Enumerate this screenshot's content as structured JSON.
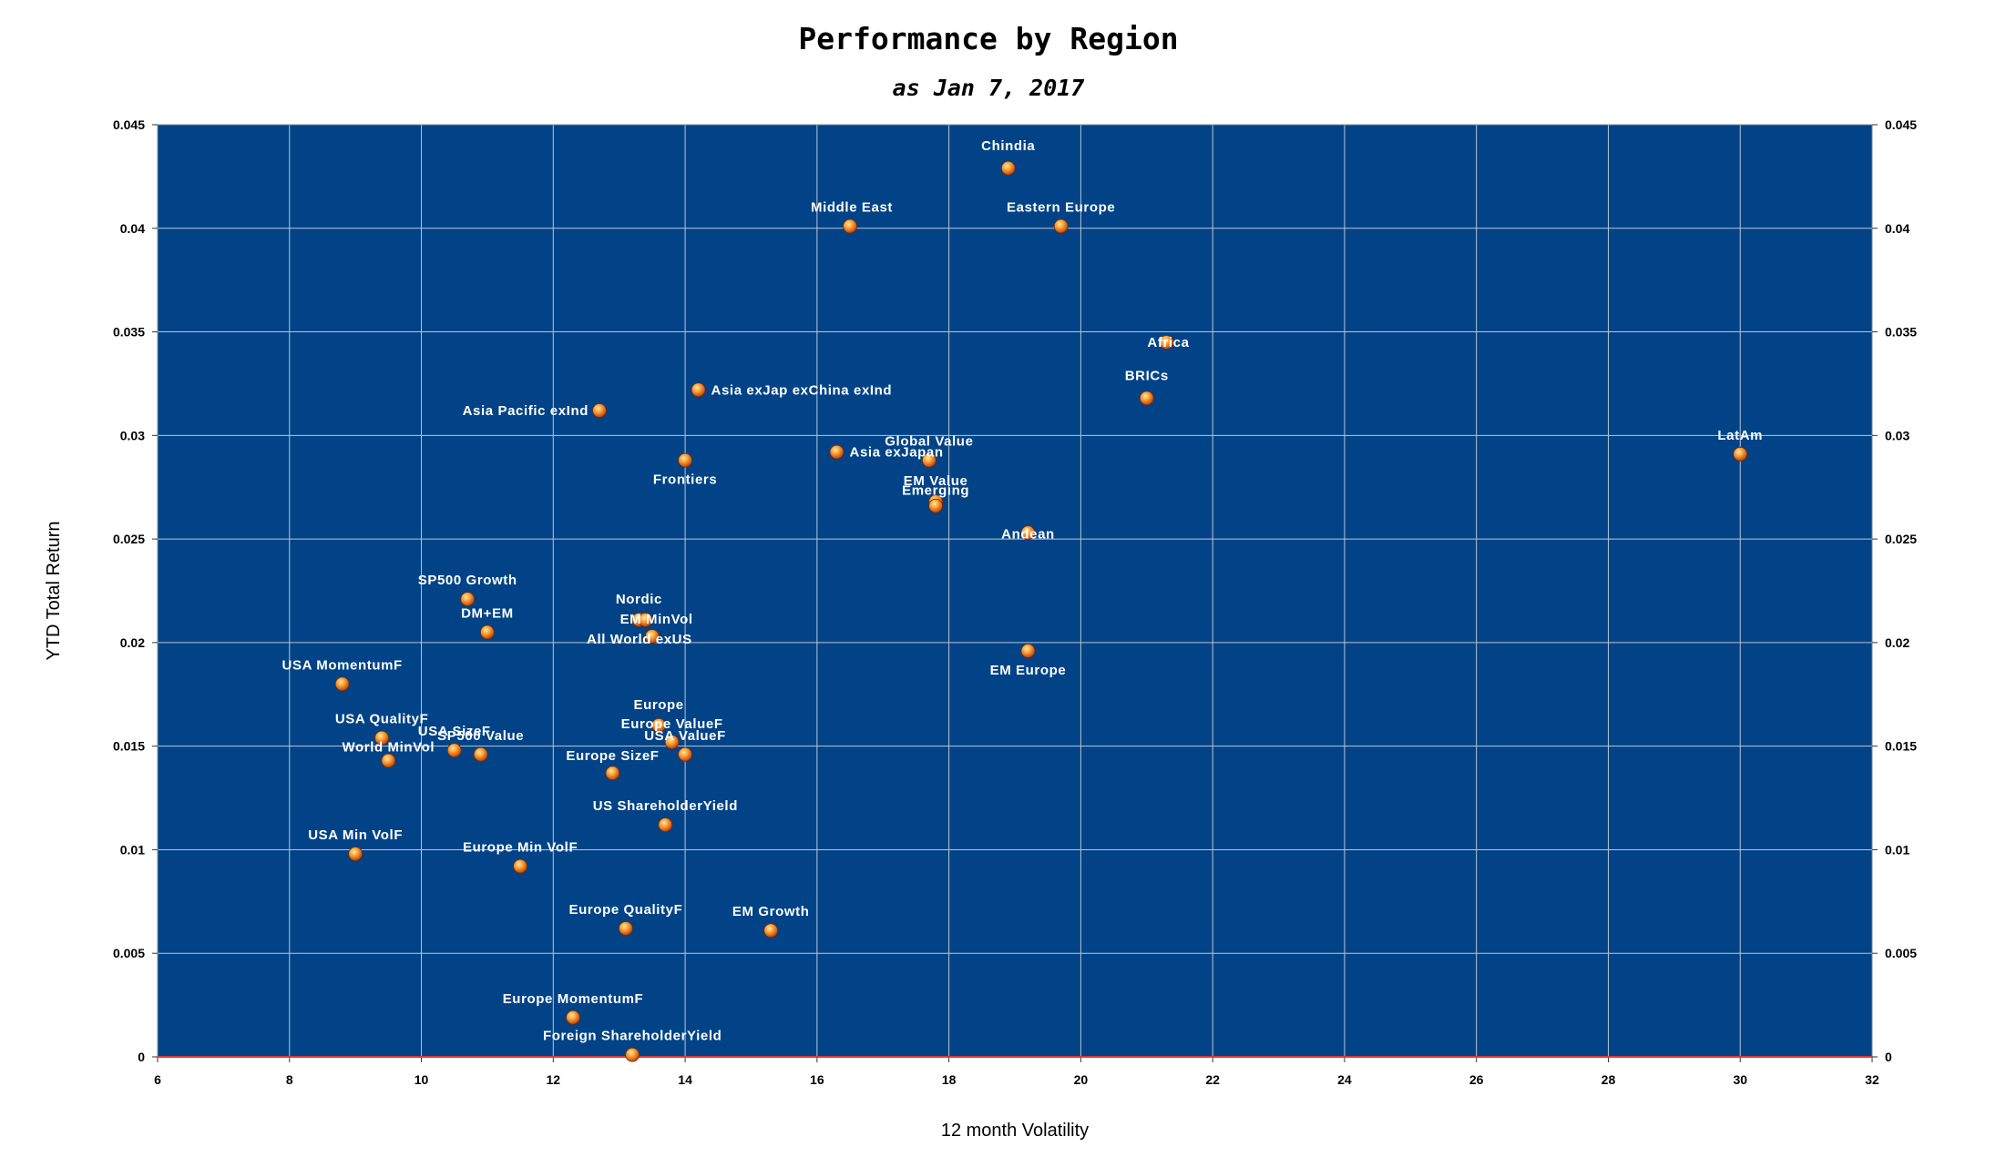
{
  "chart_data": {
    "type": "scatter",
    "title": "Performance by Region",
    "subtitle": "as Jan 7, 2017",
    "xlabel": "12 month Volatility",
    "ylabel": "YTD Total Return",
    "xlim": [
      6,
      32
    ],
    "ylim": [
      0,
      0.045
    ],
    "x_ticks": [
      "6",
      "8",
      "10",
      "12",
      "14",
      "16",
      "18",
      "20",
      "22",
      "24",
      "26",
      "28",
      "30",
      "32"
    ],
    "y_ticks": [
      "0",
      "0.005",
      "0.01",
      "0.015",
      "0.02",
      "0.025",
      "0.03",
      "0.035",
      "0.04",
      "0.045"
    ],
    "grid": true,
    "secondary_y_axis": true,
    "legend": "none",
    "colors": {
      "plot_background": "#014386",
      "grid": "#b9c6d6",
      "marker": "#f07f1e",
      "marker_highlight": "#ffd27a",
      "label": "#ffffff",
      "x_axis_line": "#d43c3c"
    },
    "points": [
      {
        "label": "Chindia",
        "x": 18.9,
        "y": 0.0429
      },
      {
        "label": "Middle East",
        "x": 16.5,
        "y": 0.0401
      },
      {
        "label": "Eastern Europe",
        "x": 19.7,
        "y": 0.0401
      },
      {
        "label": "Africa",
        "x": 21.3,
        "y": 0.0345
      },
      {
        "label": "BRICs",
        "x": 21.0,
        "y": 0.0318
      },
      {
        "label": "Asia exJap exChina exInd",
        "x": 14.2,
        "y": 0.0322
      },
      {
        "label": "Asia Pacific exInd",
        "x": 12.7,
        "y": 0.0312
      },
      {
        "label": "LatAm",
        "x": 30.0,
        "y": 0.0291
      },
      {
        "label": "Global Value",
        "x": 17.7,
        "y": 0.0288
      },
      {
        "label": "Asia exJapan",
        "x": 16.3,
        "y": 0.0292
      },
      {
        "label": "Frontiers",
        "x": 14.0,
        "y": 0.0288
      },
      {
        "label": "EM Value",
        "x": 17.8,
        "y": 0.0268
      },
      {
        "label": "Emerging",
        "x": 17.8,
        "y": 0.0266
      },
      {
        "label": "Andean",
        "x": 19.2,
        "y": 0.0253
      },
      {
        "label": "SP500 Growth",
        "x": 10.7,
        "y": 0.0221
      },
      {
        "label": "Nordic",
        "x": 13.3,
        "y": 0.0211
      },
      {
        "label": "EM MinVol",
        "x": 13.4,
        "y": 0.0211
      },
      {
        "label": "DM+EM",
        "x": 11.0,
        "y": 0.0205
      },
      {
        "label": "All World exUS",
        "x": 13.5,
        "y": 0.0203
      },
      {
        "label": "EM Europe",
        "x": 19.2,
        "y": 0.0196
      },
      {
        "label": "USA MomentumF",
        "x": 8.8,
        "y": 0.018
      },
      {
        "label": "Europe",
        "x": 13.6,
        "y": 0.016
      },
      {
        "label": "Europe ValueF",
        "x": 13.8,
        "y": 0.0152
      },
      {
        "label": "USA QualityF",
        "x": 9.4,
        "y": 0.0154
      },
      {
        "label": "USA SizeF",
        "x": 10.5,
        "y": 0.0148
      },
      {
        "label": "SP500 Value",
        "x": 10.9,
        "y": 0.0146
      },
      {
        "label": "USA ValueF",
        "x": 14.0,
        "y": 0.0146
      },
      {
        "label": "World MinVol",
        "x": 9.5,
        "y": 0.0143
      },
      {
        "label": "Europe SizeF",
        "x": 12.9,
        "y": 0.0137
      },
      {
        "label": "US ShareholderYield",
        "x": 13.7,
        "y": 0.0112
      },
      {
        "label": "USA Min VolF",
        "x": 9.0,
        "y": 0.0098
      },
      {
        "label": "Europe Min VolF",
        "x": 11.5,
        "y": 0.0092
      },
      {
        "label": "Europe QualityF",
        "x": 13.1,
        "y": 0.0062
      },
      {
        "label": "EM Growth",
        "x": 15.3,
        "y": 0.0061
      },
      {
        "label": "Europe MomentumF",
        "x": 12.3,
        "y": 0.0019
      },
      {
        "label": "Foreign ShareholderYield",
        "x": 13.2,
        "y": 0.0001
      }
    ]
  }
}
